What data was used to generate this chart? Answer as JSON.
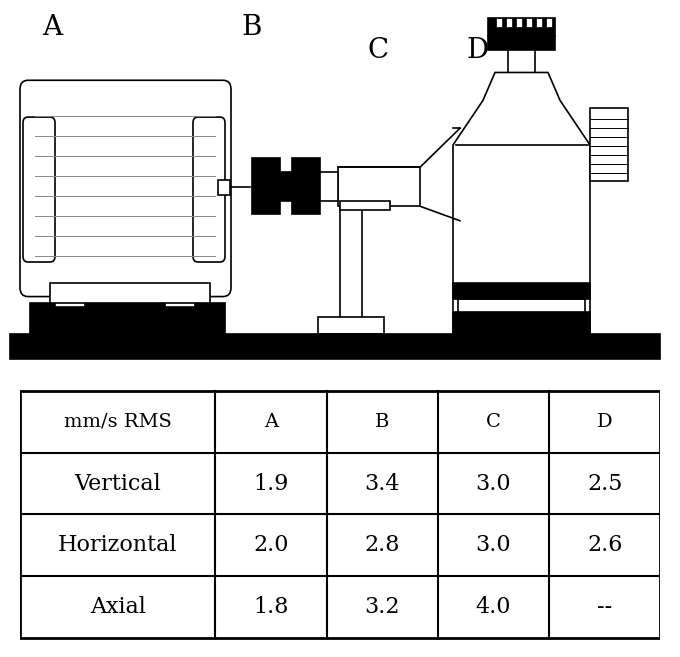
{
  "fig_width": 6.8,
  "fig_height": 6.57,
  "dpi": 100,
  "bg_color": "#ffffff",
  "table": {
    "headers": [
      "mm/s RMS",
      "A",
      "B",
      "C",
      "D"
    ],
    "rows": [
      [
        "Vertical",
        "1.9",
        "3.4",
        "3.0",
        "2.5"
      ],
      [
        "Horizontal",
        "2.0",
        "2.8",
        "3.0",
        "2.6"
      ],
      [
        "Axial",
        "1.8",
        "3.2",
        "4.0",
        "--"
      ]
    ]
  }
}
